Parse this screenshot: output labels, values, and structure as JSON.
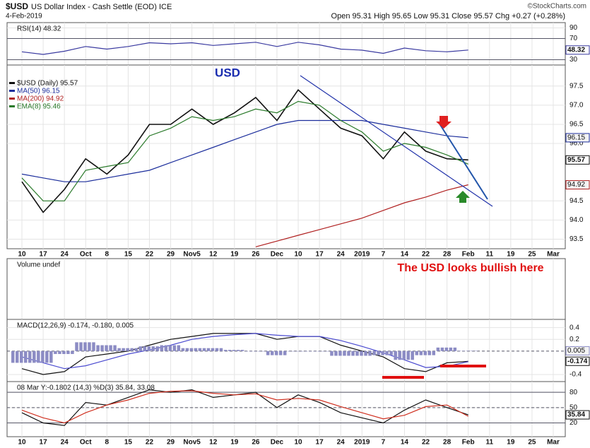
{
  "header": {
    "symbol": "$USD",
    "name": "US Dollar Index - Cash Settle (EOD) ICE",
    "date": "4-Feb-2019",
    "quote": "Open 95.31  High 95.65  Low 95.31  Close 95.57  Chg +0.27 (+0.28%)",
    "credit": "©StockCharts.com"
  },
  "chart_data": [
    {
      "type": "line",
      "title": "RSI(14) 48.32",
      "ylim": [
        20,
        100
      ],
      "yticks": [
        90,
        70,
        30
      ],
      "hlines": [
        70,
        30
      ],
      "series": [
        {
          "color": "#3a3aa0",
          "badge": true,
          "values": [
            45,
            40,
            46,
            55,
            50,
            55,
            62,
            60,
            62,
            57,
            60,
            63,
            55,
            63,
            58,
            50,
            48,
            42,
            52,
            47,
            45,
            48.32,
            null,
            null,
            null,
            null
          ]
        }
      ]
    },
    {
      "type": "line",
      "ylim": [
        93.25,
        98.05
      ],
      "yticks": [
        {
          "value": 97.5,
          "label": "97.5"
        },
        {
          "value": 97,
          "label": "97.0"
        },
        {
          "value": 96.5,
          "label": "96.5"
        },
        {
          "value": 96,
          "label": "96.0"
        },
        {
          "value": 94.5,
          "label": "94.5"
        },
        {
          "value": 94,
          "label": "94.0"
        },
        {
          "value": 93.5,
          "label": "93.5"
        }
      ],
      "annotation": "USD",
      "categories": [
        "10",
        "17",
        "24",
        "Oct",
        "8",
        "15",
        "22",
        "29",
        "Nov5",
        "12",
        "19",
        "26",
        "Dec",
        "10",
        "17",
        "24",
        "2019",
        "7",
        "14",
        "22",
        "28",
        "Feb",
        "11",
        "19",
        "25",
        "Mar"
      ],
      "series": [
        {
          "name": "$USD (Daily) 95.57",
          "color": "#111111",
          "badge": true,
          "values": [
            95.0,
            94.2,
            94.8,
            95.6,
            95.2,
            95.7,
            96.5,
            96.5,
            96.9,
            96.5,
            96.8,
            97.2,
            96.6,
            97.4,
            96.9,
            96.4,
            96.2,
            95.6,
            96.3,
            95.8,
            95.6,
            95.57,
            null,
            null,
            null,
            null
          ]
        },
        {
          "name": "MA(50) 96.15",
          "color": "#1c2e9c",
          "badge": true,
          "values": [
            95.2,
            95.1,
            95.0,
            95.0,
            95.1,
            95.2,
            95.3,
            95.5,
            95.7,
            95.9,
            96.1,
            96.3,
            96.5,
            96.6,
            96.6,
            96.6,
            96.6,
            96.5,
            96.4,
            96.3,
            96.2,
            96.15,
            null,
            null,
            null,
            null
          ]
        },
        {
          "name": "MA(200) 94.92",
          "color": "#b02020",
          "badge": true,
          "values": [
            null,
            null,
            null,
            null,
            null,
            null,
            null,
            null,
            null,
            null,
            null,
            93.3,
            93.45,
            93.6,
            93.75,
            93.9,
            94.05,
            94.25,
            94.45,
            94.6,
            94.78,
            94.92,
            null,
            null,
            null,
            null
          ]
        },
        {
          "name": "EMA(8) 95.46",
          "color": "#2a7a2a",
          "values": [
            95.1,
            94.5,
            94.5,
            95.3,
            95.4,
            95.5,
            96.2,
            96.4,
            96.7,
            96.6,
            96.7,
            96.9,
            96.8,
            97.1,
            97.0,
            96.6,
            96.3,
            95.8,
            96.0,
            95.9,
            95.7,
            95.46,
            null,
            null,
            null,
            null
          ]
        }
      ]
    },
    {
      "type": "volume",
      "title": "Volume undef",
      "annotation": "The USD looks bullish here"
    },
    {
      "type": "line",
      "title": "MACD(12,26,9) -0.174, -0.180, 0.005",
      "ylim": [
        -0.52,
        0.54
      ],
      "yticks": [
        0.4,
        0.2,
        -0.4
      ],
      "hlines": [
        0
      ],
      "series": [
        {
          "color": "#111111",
          "badge": true,
          "values": [
            -0.3,
            -0.4,
            -0.35,
            -0.1,
            -0.05,
            0,
            0.1,
            0.2,
            0.25,
            0.3,
            0.3,
            0.3,
            0.2,
            0.25,
            0.25,
            0.1,
            0,
            -0.1,
            -0.3,
            -0.35,
            -0.2,
            -0.174,
            null,
            null,
            null,
            null
          ]
        },
        {
          "color": "#4a4ad0",
          "values": [
            -0.1,
            -0.2,
            -0.3,
            -0.25,
            -0.15,
            -0.05,
            0.02,
            0.1,
            0.2,
            0.25,
            0.28,
            0.3,
            0.27,
            0.25,
            0.25,
            0.18,
            0.08,
            -0.03,
            -0.15,
            -0.28,
            -0.26,
            -0.18,
            null,
            null,
            null,
            null
          ]
        },
        {
          "color": "#8c8cc4",
          "kind": "histogram",
          "badge": true,
          "values": [
            -0.2,
            -0.2,
            -0.05,
            0.15,
            0.1,
            0.05,
            0.08,
            0.1,
            0.05,
            0.05,
            0.02,
            0,
            -0.07,
            0,
            0,
            -0.08,
            -0.08,
            -0.07,
            -0.15,
            -0.07,
            0.06,
            0.005,
            null,
            null,
            null,
            null
          ]
        }
      ]
    },
    {
      "type": "line",
      "title": "08 Mar Y:-0.1802   (14,3) %D(3) 35.84, 33.08",
      "ylim": [
        -7,
        101
      ],
      "yticks": [
        80,
        50,
        20
      ],
      "hlines": [
        80,
        50,
        20
      ],
      "categories": [
        "10",
        "17",
        "24",
        "Oct",
        "8",
        "15",
        "22",
        "29",
        "Nov5",
        "12",
        "19",
        "26",
        "Dec",
        "10",
        "17",
        "24",
        "2019",
        "7",
        "14",
        "22",
        "28",
        "Feb",
        "11",
        "19",
        "25",
        "Mar"
      ],
      "series": [
        {
          "color": "#111111",
          "badge": true,
          "values": [
            40,
            20,
            15,
            60,
            55,
            70,
            85,
            80,
            85,
            70,
            75,
            80,
            50,
            75,
            60,
            40,
            30,
            20,
            45,
            65,
            50,
            35.84,
            null,
            null,
            null,
            null
          ]
        },
        {
          "color": "#d03020",
          "values": [
            45,
            30,
            20,
            40,
            55,
            65,
            78,
            82,
            83,
            78,
            75,
            77,
            65,
            68,
            65,
            52,
            40,
            28,
            35,
            52,
            55,
            33.08,
            null,
            null,
            null,
            null
          ]
        }
      ]
    }
  ]
}
